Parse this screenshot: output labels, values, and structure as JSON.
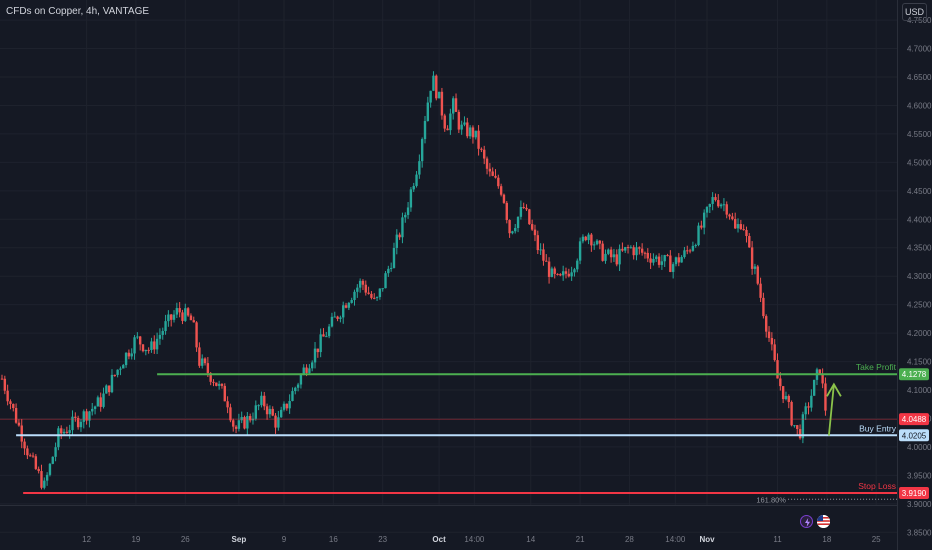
{
  "header": {
    "symbol_title": "CFDs on Copper, 4h, VANTAGE",
    "currency_button": "USD"
  },
  "colors": {
    "background": "#151924",
    "up_candle": "#26a69a",
    "down_candle": "#ef5350",
    "take_profit": "#4caf50",
    "buy_entry": "#bbdefb",
    "stop_loss": "#f23645",
    "axis_text": "#787b86",
    "grid": "#1e222d"
  },
  "chart_data": {
    "type": "candlestick",
    "title": "CFDs on Copper, 4h, VANTAGE",
    "ylim": [
      3.84,
      4.78
    ],
    "y_ticks": [
      "4.7500",
      "4.7000",
      "4.6500",
      "4.6000",
      "4.5500",
      "4.5000",
      "4.4500",
      "4.4000",
      "4.3500",
      "4.3000",
      "4.2500",
      "4.2000",
      "4.1500",
      "4.1000",
      "4.0500",
      "4.0000",
      "3.9500",
      "3.9000",
      "3.8500"
    ],
    "x_ticks": [
      {
        "label": "12",
        "day": 12
      },
      {
        "label": "19",
        "day": 19
      },
      {
        "label": "26",
        "day": 26
      },
      {
        "label": "Sep",
        "day": 33.6
      },
      {
        "label": "9",
        "day": 40
      },
      {
        "label": "16",
        "day": 47
      },
      {
        "label": "23",
        "day": 54
      },
      {
        "label": "Oct",
        "day": 62
      },
      {
        "label": "14:00",
        "day": 67
      },
      {
        "label": "14",
        "day": 75
      },
      {
        "label": "21",
        "day": 82
      },
      {
        "label": "28",
        "day": 89
      },
      {
        "label": "14:00",
        "day": 95.5
      },
      {
        "label": "Nov",
        "day": 100
      },
      {
        "label": "11",
        "day": 110
      },
      {
        "label": "18",
        "day": 117
      },
      {
        "label": "25",
        "day": 124
      }
    ],
    "price_path": [
      [
        0,
        4.12
      ],
      [
        2,
        4.05
      ],
      [
        4,
        3.98
      ],
      [
        6,
        3.93
      ],
      [
        8,
        4.02
      ],
      [
        11,
        4.05
      ],
      [
        14,
        4.08
      ],
      [
        17,
        4.15
      ],
      [
        19,
        4.19
      ],
      [
        21,
        4.17
      ],
      [
        23,
        4.21
      ],
      [
        25,
        4.24
      ],
      [
        27,
        4.22
      ],
      [
        28,
        4.15
      ],
      [
        30,
        4.12
      ],
      [
        32,
        4.08
      ],
      [
        33,
        4.03
      ],
      [
        35,
        4.05
      ],
      [
        37,
        4.08
      ],
      [
        39,
        4.04
      ],
      [
        41,
        4.09
      ],
      [
        43,
        4.14
      ],
      [
        45,
        4.18
      ],
      [
        47,
        4.22
      ],
      [
        49,
        4.26
      ],
      [
        51,
        4.29
      ],
      [
        53,
        4.25
      ],
      [
        55,
        4.32
      ],
      [
        57,
        4.4
      ],
      [
        59,
        4.5
      ],
      [
        60,
        4.58
      ],
      [
        61,
        4.65
      ],
      [
        62,
        4.61
      ],
      [
        63,
        4.56
      ],
      [
        64,
        4.6
      ],
      [
        65,
        4.56
      ],
      [
        67,
        4.55
      ],
      [
        69,
        4.48
      ],
      [
        71,
        4.45
      ],
      [
        72,
        4.38
      ],
      [
        74,
        4.42
      ],
      [
        76,
        4.35
      ],
      [
        78,
        4.3
      ],
      [
        79,
        4.29
      ],
      [
        81,
        4.32
      ],
      [
        83,
        4.38
      ],
      [
        85,
        4.34
      ],
      [
        87,
        4.33
      ],
      [
        89,
        4.35
      ],
      [
        91,
        4.34
      ],
      [
        93,
        4.33
      ],
      [
        95,
        4.32
      ],
      [
        97,
        4.34
      ],
      [
        99,
        4.38
      ],
      [
        101,
        4.44
      ],
      [
        103,
        4.42
      ],
      [
        104,
        4.38
      ],
      [
        105,
        4.4
      ],
      [
        106,
        4.34
      ],
      [
        107,
        4.3
      ],
      [
        108,
        4.24
      ],
      [
        109,
        4.18
      ],
      [
        110,
        4.12
      ],
      [
        111,
        4.09
      ],
      [
        112,
        4.05
      ],
      [
        113,
        4.02
      ],
      [
        114,
        4.06
      ],
      [
        115,
        4.1
      ],
      [
        116,
        4.14
      ],
      [
        117,
        4.05
      ]
    ],
    "levels": [
      {
        "name": "Take Profit",
        "price": 4.1278,
        "label": "4.1278",
        "color": "#4caf50",
        "from_day": 22
      },
      {
        "name": "Buy Entry",
        "price": 4.0205,
        "label": "4.0205",
        "color": "#bbdefb",
        "from_day": 2
      },
      {
        "name": "Stop Loss",
        "price": 3.919,
        "label": "3.9190",
        "color": "#f23645",
        "from_day": 3
      }
    ],
    "last_price": {
      "price": 4.0488,
      "label": "4.0488",
      "color": "#f23645"
    },
    "fib": {
      "label": "161.80%",
      "price": 3.908
    },
    "arrow": {
      "from_price": 4.02,
      "to_price": 4.11,
      "day": 118
    }
  }
}
